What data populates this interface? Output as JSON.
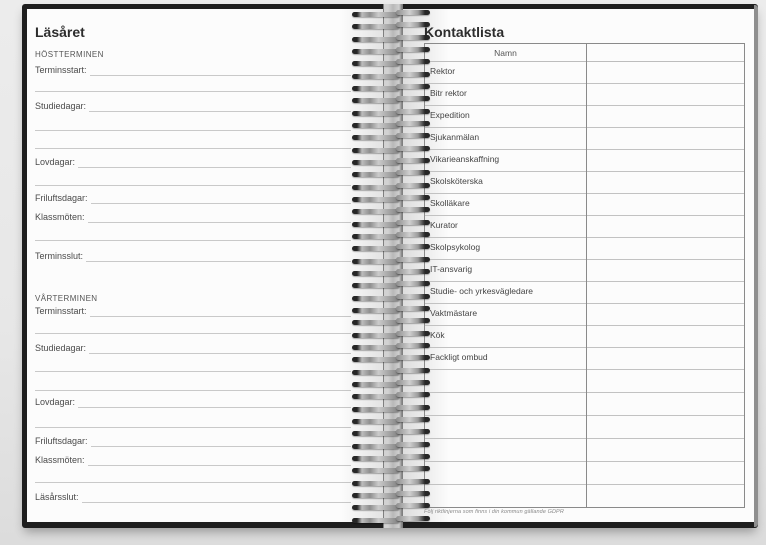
{
  "left_page": {
    "title": "Läsåret",
    "sections": [
      {
        "heading": "HÖSTTERMINEN",
        "fields": [
          "Terminsstart:",
          "Studiedagar:",
          "Lovdagar:",
          "Friluftsdagar:",
          "Klassmöten:",
          "Terminsslut:"
        ]
      },
      {
        "heading": "VÅRTERMINEN",
        "fields": [
          "Terminsstart:",
          "Studiedagar:",
          "Lovdagar:",
          "Friluftsdagar:",
          "Klassmöten:",
          "Läsårsslut:"
        ]
      }
    ]
  },
  "right_page": {
    "title": "Kontaktlista",
    "table": {
      "name_column_header": "Namn",
      "rows": [
        "Rektor",
        "Bitr rektor",
        "Expedition",
        "Sjukanmälan",
        "Vikarieanskaffning",
        "Skolsköterska",
        "Skolläkare",
        "Kurator",
        "Skolpsykolog",
        "IT-ansvarig",
        "Studie- och yrkesvägledare",
        "Vaktmästare",
        "Kök",
        "Fackligt ombud"
      ],
      "empty_row_count": 6
    },
    "footnote": "Följ riktlinjerna som finns i din kommun gällande GDPR"
  },
  "binding": {
    "type": "wire-o-spiral",
    "loop_count": 42
  },
  "colors": {
    "cover": "#1e1e1e",
    "page": "#fcfcfc",
    "rule_line": "#c9c9c9",
    "table_border": "#8a8a8a",
    "text": "#4a4a4a"
  }
}
